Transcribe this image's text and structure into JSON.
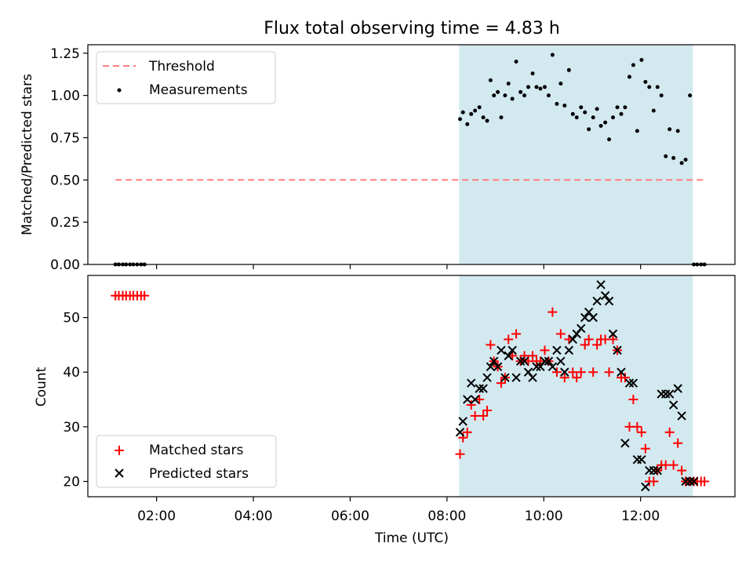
{
  "title": "Flux total observing time = 4.83 h",
  "xlabel": "Time (UTC)",
  "xticks": [
    {
      "h": 2,
      "label": "02:00"
    },
    {
      "h": 4,
      "label": "04:00"
    },
    {
      "h": 6,
      "label": "06:00"
    },
    {
      "h": 8,
      "label": "08:00"
    },
    {
      "h": 10,
      "label": "10:00"
    },
    {
      "h": 12,
      "label": "12:00"
    }
  ],
  "xlim": [
    0.58,
    13.95
  ],
  "observing_window": [
    8.25,
    13.08
  ],
  "colors": {
    "window": "#d3e9f0",
    "threshold": "#ff7f7f",
    "measurement": "#000000",
    "matched": "#ff0000",
    "predicted": "#000000"
  },
  "chart_data": [
    {
      "type": "scatter",
      "panel": "top",
      "ylabel": "Matched/Predicted stars",
      "ylim": [
        0,
        1.3
      ],
      "yticks": [
        "0.00",
        "0.25",
        "0.50",
        "0.75",
        "1.00",
        "1.25"
      ],
      "legend_position": "upper-left",
      "threshold": {
        "name": "Threshold",
        "y": 0.5,
        "x_range": [
          1.15,
          13.35
        ]
      },
      "series": [
        {
          "name": "Measurements",
          "x": [
            1.15,
            1.22,
            1.3,
            1.37,
            1.45,
            1.52,
            1.6,
            1.68,
            1.75,
            8.27,
            8.33,
            8.42,
            8.5,
            8.58,
            8.67,
            8.75,
            8.83,
            8.9,
            8.97,
            9.05,
            9.12,
            9.2,
            9.27,
            9.35,
            9.43,
            9.52,
            9.6,
            9.68,
            9.77,
            9.85,
            9.93,
            10.02,
            10.1,
            10.18,
            10.27,
            10.35,
            10.43,
            10.52,
            10.6,
            10.68,
            10.77,
            10.85,
            10.93,
            11.02,
            11.1,
            11.18,
            11.27,
            11.35,
            11.43,
            11.52,
            11.6,
            11.68,
            11.77,
            11.85,
            11.93,
            12.02,
            12.1,
            12.18,
            12.27,
            12.35,
            12.43,
            12.52,
            12.6,
            12.68,
            12.77,
            12.85,
            12.93,
            13.02,
            13.1,
            13.17,
            13.25,
            13.32
          ],
          "y": [
            0,
            0,
            0,
            0,
            0,
            0,
            0,
            0,
            0,
            0.86,
            0.9,
            0.83,
            0.89,
            0.91,
            0.93,
            0.87,
            0.85,
            1.09,
            1.0,
            1.02,
            0.87,
            1.0,
            1.07,
            0.98,
            1.2,
            1.02,
            1.0,
            1.05,
            1.13,
            1.05,
            1.04,
            1.05,
            1.0,
            1.24,
            0.95,
            1.07,
            0.94,
            1.15,
            0.89,
            0.87,
            0.93,
            0.9,
            0.8,
            0.87,
            0.92,
            0.82,
            0.84,
            0.74,
            0.87,
            0.93,
            0.89,
            0.93,
            1.11,
            1.18,
            0.79,
            1.21,
            1.08,
            1.05,
            0.91,
            1.05,
            1.0,
            0.64,
            0.8,
            0.63,
            0.79,
            0.6,
            0.62,
            1.0,
            0,
            0,
            0,
            0
          ]
        }
      ]
    },
    {
      "type": "scatter",
      "panel": "bottom",
      "ylabel": "Count",
      "ylim": [
        17.2,
        57.7
      ],
      "yticks": [
        "20",
        "30",
        "40",
        "50"
      ],
      "legend_position": "lower-left",
      "series": [
        {
          "name": "Matched stars",
          "marker": "+",
          "x": [
            1.15,
            1.22,
            1.3,
            1.37,
            1.45,
            1.52,
            1.6,
            1.68,
            1.75,
            8.27,
            8.33,
            8.42,
            8.5,
            8.58,
            8.67,
            8.75,
            8.83,
            8.9,
            8.97,
            9.05,
            9.12,
            9.2,
            9.27,
            9.35,
            9.43,
            9.52,
            9.6,
            9.68,
            9.77,
            9.85,
            9.93,
            10.02,
            10.1,
            10.18,
            10.27,
            10.35,
            10.43,
            10.52,
            10.6,
            10.68,
            10.77,
            10.85,
            10.93,
            11.02,
            11.1,
            11.18,
            11.27,
            11.35,
            11.43,
            11.52,
            11.6,
            11.68,
            11.77,
            11.85,
            11.93,
            12.02,
            12.1,
            12.18,
            12.27,
            12.35,
            12.43,
            12.52,
            12.6,
            12.68,
            12.77,
            12.85,
            12.93,
            13.02,
            13.1,
            13.17,
            13.25,
            13.32
          ],
          "y": [
            54,
            54,
            54,
            54,
            54,
            54,
            54,
            54,
            54,
            25,
            28,
            29,
            34,
            32,
            35,
            32,
            33,
            45,
            42,
            41,
            38,
            39,
            46,
            43,
            47,
            42,
            43,
            42,
            43,
            42,
            42,
            44,
            42,
            51,
            40,
            47,
            39,
            46,
            40,
            39,
            40,
            45,
            46,
            40,
            45,
            46,
            46,
            40,
            46,
            44,
            39,
            39,
            30,
            35,
            30,
            29,
            26,
            20,
            20,
            22,
            23,
            23,
            29,
            23,
            27,
            22,
            20,
            20,
            20,
            20,
            20,
            20
          ]
        },
        {
          "name": "Predicted stars",
          "marker": "x",
          "x": [
            8.27,
            8.33,
            8.42,
            8.5,
            8.58,
            8.67,
            8.75,
            8.83,
            8.9,
            8.97,
            9.05,
            9.12,
            9.2,
            9.27,
            9.35,
            9.43,
            9.52,
            9.6,
            9.68,
            9.77,
            9.85,
            9.93,
            10.02,
            10.1,
            10.18,
            10.27,
            10.35,
            10.43,
            10.52,
            10.6,
            10.68,
            10.77,
            10.85,
            10.93,
            11.02,
            11.1,
            11.18,
            11.27,
            11.35,
            11.43,
            11.52,
            11.6,
            11.68,
            11.77,
            11.85,
            11.93,
            12.02,
            12.1,
            12.18,
            12.27,
            12.35,
            12.43,
            12.52,
            12.6,
            12.68,
            12.77,
            12.85,
            12.93,
            13.02,
            13.1
          ],
          "y": [
            29,
            31,
            35,
            38,
            35,
            37,
            37,
            39,
            41,
            42,
            41,
            44,
            39,
            43,
            44,
            39,
            42,
            42,
            40,
            39,
            41,
            41,
            42,
            42,
            41,
            44,
            42,
            40,
            44,
            46,
            47,
            48,
            50,
            51,
            50,
            53,
            56,
            54,
            53,
            47,
            44,
            40,
            27,
            38,
            38,
            24,
            24,
            19,
            22,
            22,
            22,
            36,
            36,
            36,
            34,
            37,
            32,
            20,
            20,
            20
          ]
        }
      ]
    }
  ]
}
